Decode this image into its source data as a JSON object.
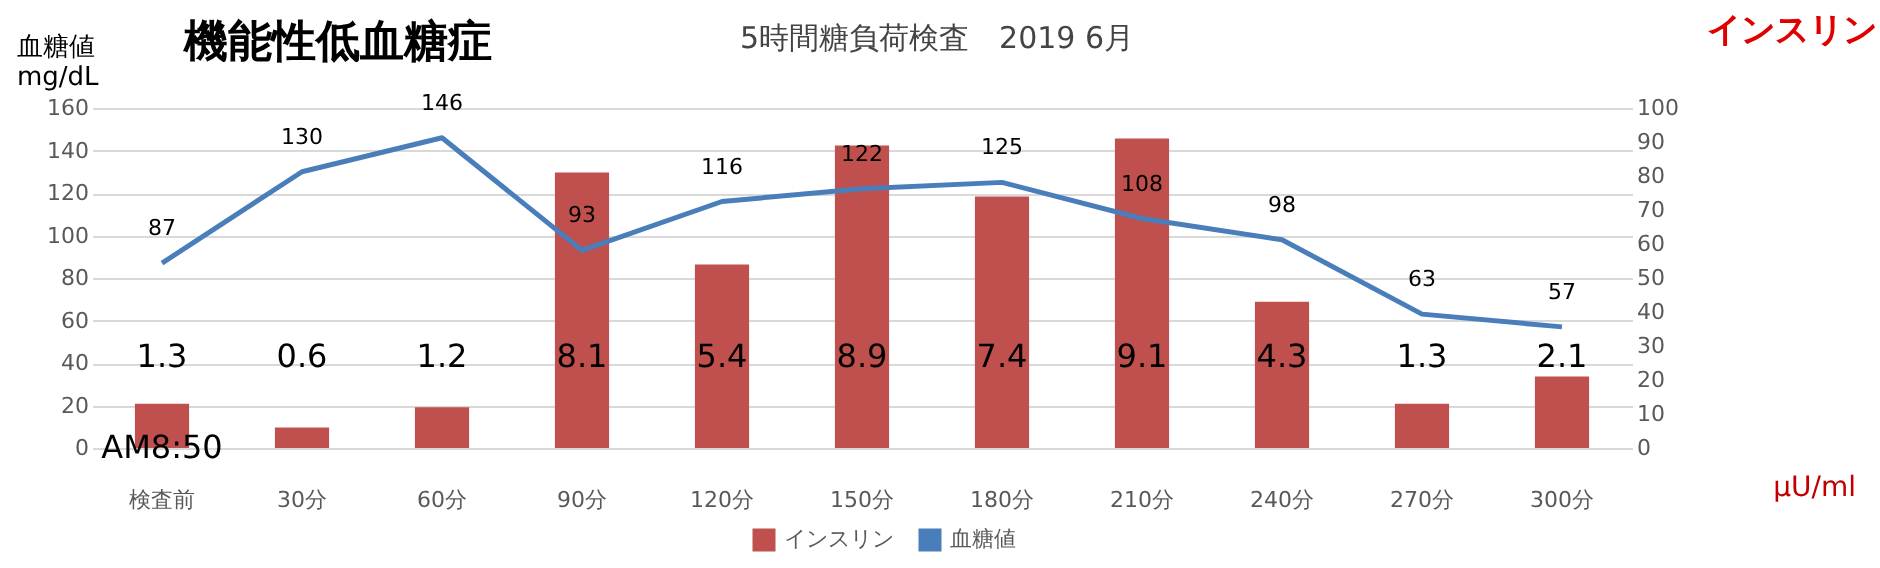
{
  "chart_data": {
    "type": "bar",
    "title": "機能性低血糖症",
    "subtitle": "5時間糖負荷検査　2019 6月",
    "ylabel": "血糖値\nmg/dL",
    "y2label": "インスリン",
    "annotations": [
      "μU/ml",
      {
        "text": "AM8:50",
        "x": "検査前",
        "y": 0
      },
      "1.3",
      "0.6",
      "1.2",
      "8.1",
      "5.4",
      "8.9",
      "7.4",
      "9.1",
      "4.3",
      "1.3",
      "2.1"
    ],
    "categories": [
      "検査前",
      "30分",
      "60分",
      "90分",
      "120分",
      "150分",
      "180分",
      "210分",
      "240分",
      "270分",
      "300分"
    ],
    "series": [
      {
        "name": "インスリン",
        "axis": "y2",
        "color": "#c0504d",
        "values": [
          13,
          6,
          12,
          81,
          54,
          89,
          74,
          91,
          43,
          13,
          21
        ]
      },
      {
        "name": "血糖値",
        "type": "line",
        "color": "#4a7ebb",
        "values": [
          87,
          130,
          146,
          93,
          116,
          122,
          125,
          108,
          98,
          63,
          57
        ],
        "value_labels": [
          "87",
          "130",
          "146",
          "93",
          "116",
          "122",
          "125",
          "108",
          "98",
          "63",
          "57"
        ]
      }
    ],
    "ylim": [
      0,
      160
    ],
    "yticks": [
      0,
      20,
      40,
      60,
      80,
      100,
      120,
      140,
      160
    ],
    "y2lim": [
      0,
      100
    ],
    "y2ticks": [
      0,
      10,
      20,
      30,
      40,
      50,
      60,
      70,
      80,
      90,
      100
    ],
    "grid": "y",
    "legend": "bottom",
    "marker": "none",
    "line_style": "solid"
  }
}
